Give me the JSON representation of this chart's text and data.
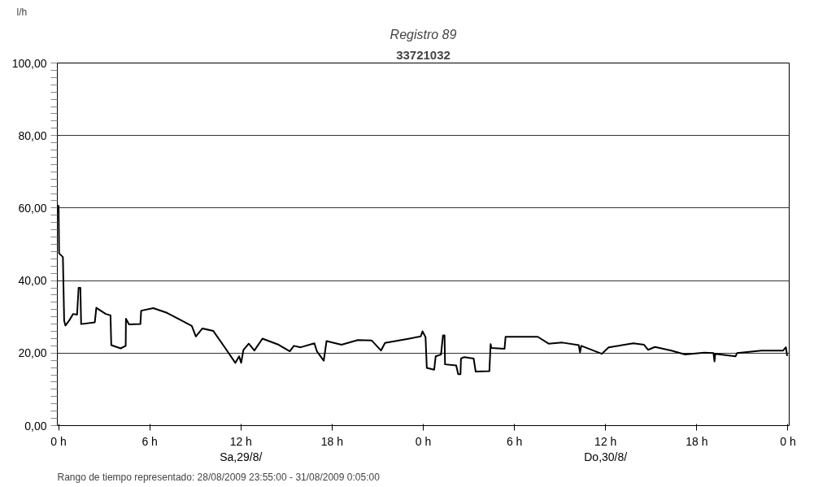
{
  "chart_data": {
    "type": "line",
    "title": "Registro 89",
    "subtitle": "33721032",
    "ylabel": "l/h",
    "annotations": [
      "Rango de tiempo representado: 28/08/2009 23:55:00 - 31/08/2009 0:05:00"
    ],
    "series": [
      {
        "color": "#000000",
        "x": [
          "2009-08-29T00:00",
          "2009-08-29T00:02",
          "2009-08-29T00:17",
          "2009-08-29T00:22",
          "2009-08-29T00:27",
          "2009-08-29T00:42",
          "2009-08-29T00:57",
          "2009-08-29T01:13",
          "2009-08-29T01:19",
          "2009-08-29T01:26",
          "2009-08-29T01:29",
          "2009-08-29T02:23",
          "2009-08-29T02:29",
          "2009-08-29T03:06",
          "2009-08-29T03:25",
          "2009-08-29T03:28",
          "2009-08-29T04:05",
          "2009-08-29T04:25",
          "2009-08-29T04:26",
          "2009-08-29T04:38",
          "2009-08-29T05:23",
          "2009-08-29T05:26",
          "2009-08-29T06:14",
          "2009-08-29T07:08",
          "2009-08-29T08:02",
          "2009-08-29T08:46",
          "2009-08-29T09:02",
          "2009-08-29T09:28",
          "2009-08-29T10:11",
          "2009-08-29T10:55",
          "2009-08-29T11:38",
          "2009-08-29T11:53",
          "2009-08-29T12:01",
          "2009-08-29T12:10",
          "2009-08-29T12:31",
          "2009-08-29T12:53",
          "2009-08-29T13:25",
          "2009-08-29T14:29",
          "2009-08-29T15:13",
          "2009-08-29T15:29",
          "2009-08-29T15:56",
          "2009-08-29T16:50",
          "2009-08-29T17:00",
          "2009-08-29T17:27",
          "2009-08-29T17:38",
          "2009-08-29T18:37",
          "2009-08-29T19:42",
          "2009-08-29T20:36",
          "2009-08-29T21:13",
          "2009-08-29T21:29",
          "2009-08-29T22:56",
          "2009-08-29T23:50",
          "2009-08-29T23:57",
          "2009-08-30T00:09",
          "2009-08-30T00:14",
          "2009-08-30T00:43",
          "2009-08-30T00:49",
          "2009-08-30T01:10",
          "2009-08-30T01:18",
          "2009-08-30T01:24",
          "2009-08-30T01:26",
          "2009-08-30T02:10",
          "2009-08-30T02:18",
          "2009-08-30T02:27",
          "2009-08-30T02:29",
          "2009-08-30T02:42",
          "2009-08-30T03:19",
          "2009-08-30T03:27",
          "2009-08-30T04:21",
          "2009-08-30T04:26",
          "2009-08-30T04:29",
          "2009-08-30T05:21",
          "2009-08-30T05:25",
          "2009-08-30T07:32",
          "2009-08-30T08:15",
          "2009-08-30T09:09",
          "2009-08-30T10:14",
          "2009-08-30T10:19",
          "2009-08-30T10:24",
          "2009-08-30T11:45",
          "2009-08-30T12:12",
          "2009-08-30T13:49",
          "2009-08-30T14:32",
          "2009-08-30T14:48",
          "2009-08-30T15:15",
          "2009-08-30T16:20",
          "2009-08-30T17:14",
          "2009-08-30T18:29",
          "2009-08-30T19:06",
          "2009-08-30T19:10",
          "2009-08-30T19:13",
          "2009-08-30T20:33",
          "2009-08-30T20:39",
          "2009-08-30T22:15",
          "2009-08-30T23:41",
          "2009-08-30T23:52",
          "2009-08-30T23:57"
        ],
        "values": [
          60.8,
          47.5,
          46.5,
          29.0,
          27.6,
          29.0,
          30.8,
          30.6,
          38.0,
          38.0,
          28.0,
          28.5,
          32.5,
          30.8,
          30.4,
          22.2,
          21.3,
          22.0,
          29.5,
          27.9,
          28.0,
          31.7,
          32.4,
          31.1,
          29.1,
          27.5,
          24.6,
          26.8,
          26.1,
          21.7,
          17.3,
          19.1,
          17.3,
          20.9,
          22.6,
          20.7,
          24.0,
          22.3,
          20.5,
          22.0,
          21.6,
          22.7,
          20.5,
          17.9,
          23.3,
          22.3,
          23.6,
          23.5,
          20.7,
          22.8,
          23.9,
          24.6,
          26.0,
          24.4,
          15.9,
          15.4,
          19.1,
          19.6,
          24.9,
          24.9,
          16.9,
          16.6,
          14.2,
          14.2,
          18.5,
          18.9,
          18.5,
          14.9,
          15.0,
          22.5,
          21.4,
          21.2,
          24.5,
          24.5,
          22.6,
          22.9,
          22.2,
          20.2,
          22.0,
          19.8,
          21.6,
          22.7,
          22.3,
          20.9,
          21.7,
          20.7,
          19.6,
          20.1,
          20.0,
          17.7,
          19.8,
          19.1,
          20.0,
          20.7,
          20.7,
          21.6,
          19.2
        ]
      }
    ],
    "xlim": [
      "2009-08-28T23:55",
      "2009-08-31T00:05"
    ],
    "xticks": [
      {
        "value": "2009-08-29T00:00",
        "label": "0 h"
      },
      {
        "value": "2009-08-29T06:00",
        "label": "6 h"
      },
      {
        "value": "2009-08-29T12:00",
        "label": "12 h\nSa,29/8/"
      },
      {
        "value": "2009-08-29T18:00",
        "label": "18 h"
      },
      {
        "value": "2009-08-30T00:00",
        "label": "0 h"
      },
      {
        "value": "2009-08-30T06:00",
        "label": "6 h"
      },
      {
        "value": "2009-08-30T12:00",
        "label": "12 h\nDo,30/8/"
      },
      {
        "value": "2009-08-30T18:00",
        "label": "18 h"
      },
      {
        "value": "2009-08-31T00:00",
        "label": "0 h"
      }
    ],
    "ylim": [
      0,
      100
    ],
    "yticks": [
      {
        "value": 0,
        "label": "0,00"
      },
      {
        "value": 20,
        "label": "20,00"
      },
      {
        "value": 40,
        "label": "40,00"
      },
      {
        "value": 60,
        "label": "60,00"
      },
      {
        "value": 80,
        "label": "80,00"
      },
      {
        "value": 100,
        "label": "100,00"
      }
    ],
    "grid": "y",
    "line_style": "solid"
  }
}
